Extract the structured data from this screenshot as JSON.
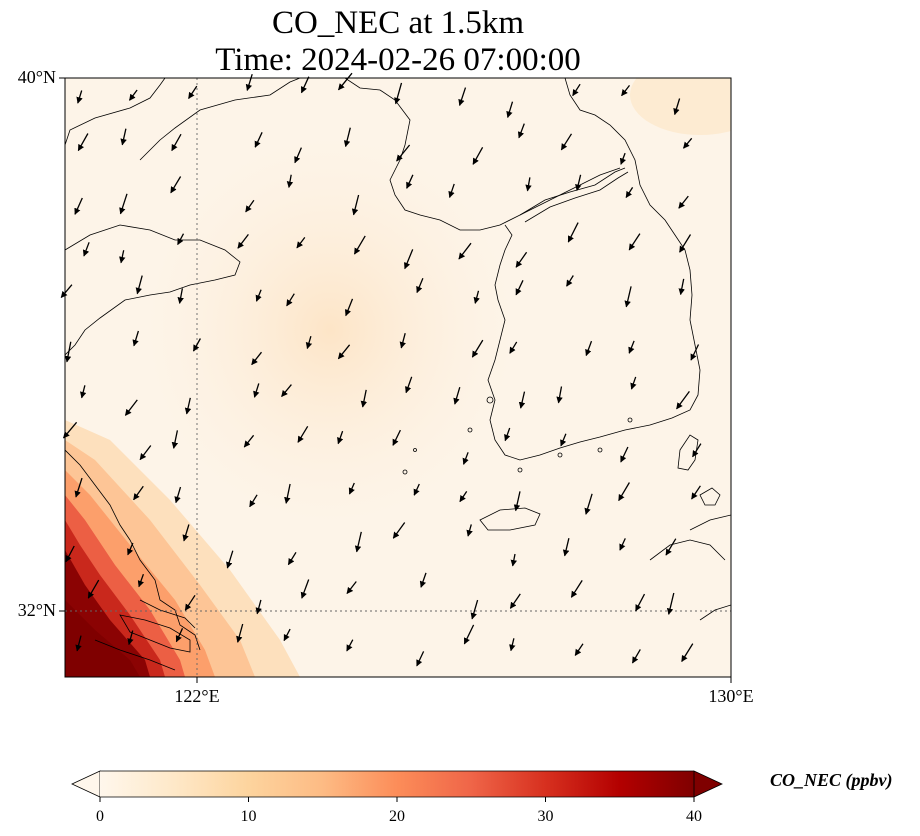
{
  "figure": {
    "title_line1": "CO_NEC at 1.5km",
    "title_line2": "Time: 2024-02-26 07:00:00"
  },
  "map": {
    "lon_range": [
      120,
      130
    ],
    "lat_range": [
      31,
      40
    ],
    "lat_labels": [
      "40°N",
      "32°N"
    ],
    "lon_labels": [
      "122°E",
      "130°E"
    ],
    "gridlines": [
      "122°E",
      "32°N"
    ],
    "field": "CO_NEC",
    "high_concentration_region": "southwest corner (Shanghai / Yangtze delta)",
    "wind_vectors": "dominant north-northeasterly flow (arrows pointing south-southwest)"
  },
  "colorbar": {
    "label": "CO_NEC (ppbv)",
    "colormap": "OrRd",
    "range": [
      0,
      40
    ],
    "ticks": [
      "0",
      "10",
      "20",
      "30",
      "40"
    ],
    "extend": "both",
    "colors": [
      "#fff7ec",
      "#fee8c8",
      "#fdd49e",
      "#fdbb84",
      "#fc8d59",
      "#ef6548",
      "#d7301f",
      "#b30000",
      "#7f0000"
    ]
  }
}
